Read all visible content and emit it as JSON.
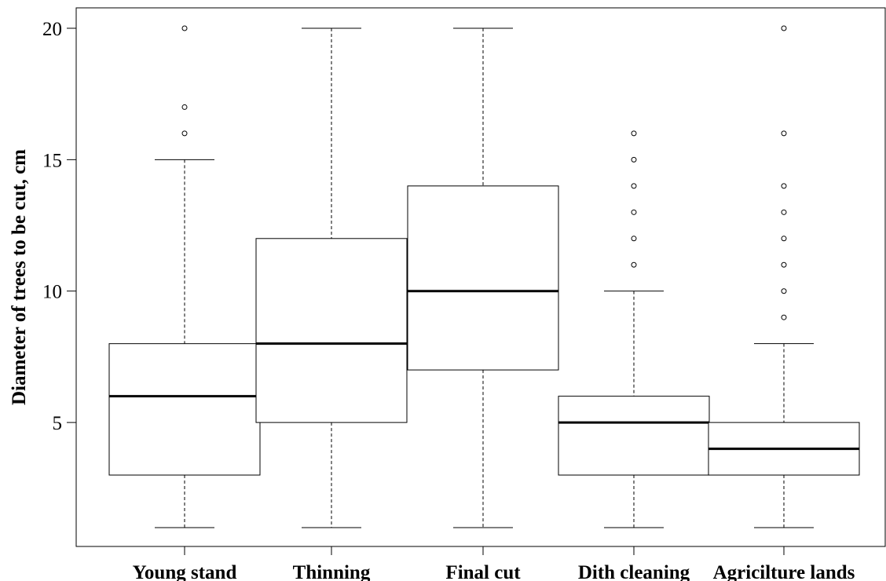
{
  "chart_data": {
    "type": "boxplot",
    "title": "",
    "xlabel": "",
    "ylabel": "Diameter of trees to be cut, cm",
    "ylim": [
      0,
      20.7
    ],
    "yticks": [
      5,
      10,
      15,
      20
    ],
    "grid": false,
    "legend": "none",
    "categories": [
      "Young stand",
      "Thinning",
      "Final cut",
      "Dith cleaning",
      "Agricilture lands"
    ],
    "series": [
      {
        "category": "Young stand",
        "whisker_low": 1,
        "q1": 3,
        "median": 6,
        "q3": 8,
        "whisker_high": 15,
        "outliers": [
          16,
          17,
          20
        ]
      },
      {
        "category": "Thinning",
        "whisker_low": 1,
        "q1": 5,
        "median": 8,
        "q3": 12,
        "whisker_high": 20,
        "outliers": []
      },
      {
        "category": "Final cut",
        "whisker_low": 1,
        "q1": 7,
        "median": 10,
        "q3": 14,
        "whisker_high": 20,
        "outliers": []
      },
      {
        "category": "Dith cleaning",
        "whisker_low": 1,
        "q1": 3,
        "median": 5,
        "q3": 6,
        "whisker_high": 10,
        "outliers": [
          11,
          12,
          13,
          14,
          15,
          16
        ]
      },
      {
        "category": "Agricilture lands",
        "whisker_low": 1,
        "q1": 3,
        "median": 4,
        "q3": 5,
        "whisker_high": 8,
        "outliers": [
          9,
          10,
          11,
          12,
          13,
          14,
          16,
          20
        ]
      }
    ]
  }
}
